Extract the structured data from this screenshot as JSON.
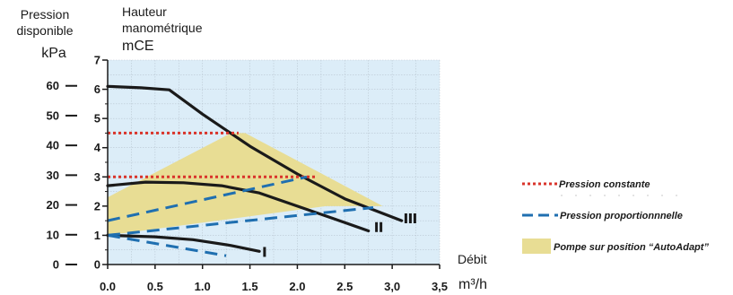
{
  "chart_data": {
    "type": "line",
    "y_left_label_line1": "Pression",
    "y_left_label_line2": "disponible",
    "y_left_unit": "kPa",
    "y_right_label_line1": "Hauteur",
    "y_right_label_line2": "manométrique",
    "y_right_unit": "mCE",
    "x_label": "Débit",
    "x_unit": "m³/h",
    "x_ticks": [
      "0.0",
      "0.5",
      "1.0",
      "1.5",
      "2.0",
      "2.5",
      "3,0",
      "3,5"
    ],
    "x_tick_values": [
      0,
      0.5,
      1.0,
      1.5,
      2.0,
      2.5,
      3.0,
      3.5
    ],
    "xlim": [
      0,
      3.5
    ],
    "ylim_mce": [
      0,
      7
    ],
    "y_mce_ticks": [
      "0",
      "1",
      "2",
      "3",
      "4",
      "5",
      "6",
      "7"
    ],
    "y_kpa_ticks": [
      "0",
      "10",
      "20",
      "30",
      "40",
      "50",
      "60"
    ],
    "y_kpa_values": [
      0,
      10,
      20,
      30,
      40,
      50,
      60
    ],
    "grid": true,
    "background_color": "#dcedf8",
    "curve_labels": {
      "I": "I",
      "II": "II",
      "III": "III"
    },
    "area": {
      "name": "Pompe sur position “AutoAdapt”",
      "color": "#e8dd94",
      "points": [
        [
          0,
          2.3
        ],
        [
          1.3,
          4.5
        ],
        [
          1.45,
          4.5
        ],
        [
          2.9,
          2.0
        ],
        [
          2.3,
          2.0
        ],
        [
          0,
          1.0
        ]
      ]
    },
    "series": [
      {
        "name": "I",
        "style": "solid",
        "color": "#1a1a1a",
        "points": [
          [
            0,
            1.0
          ],
          [
            0.5,
            0.95
          ],
          [
            0.9,
            0.85
          ],
          [
            1.3,
            0.65
          ],
          [
            1.6,
            0.45
          ]
        ]
      },
      {
        "name": "II",
        "style": "solid",
        "color": "#1a1a1a",
        "points": [
          [
            0,
            2.7
          ],
          [
            0.4,
            2.82
          ],
          [
            0.8,
            2.8
          ],
          [
            1.2,
            2.7
          ],
          [
            1.6,
            2.45
          ],
          [
            2.0,
            2.0
          ],
          [
            2.4,
            1.55
          ],
          [
            2.75,
            1.15
          ]
        ]
      },
      {
        "name": "III",
        "style": "solid",
        "color": "#1a1a1a",
        "points": [
          [
            0,
            6.1
          ],
          [
            0.35,
            6.05
          ],
          [
            0.65,
            5.98
          ],
          [
            1.0,
            5.15
          ],
          [
            1.5,
            4.05
          ],
          [
            2.0,
            3.1
          ],
          [
            2.5,
            2.25
          ],
          [
            3.1,
            1.5
          ]
        ]
      },
      {
        "name": "Pression constante",
        "style": "dotted",
        "color": "#d9342b",
        "segments": [
          [
            [
              0,
              4.5
            ],
            [
              1.38,
              4.5
            ]
          ],
          [
            [
              0,
              3.0
            ],
            [
              2.2,
              3.0
            ]
          ]
        ]
      },
      {
        "name": "Pression proportionnnelle",
        "style": "dashed",
        "color": "#1f6fb0",
        "segments": [
          [
            [
              0,
              1.5
            ],
            [
              2.1,
              3.0
            ]
          ],
          [
            [
              0,
              1.0
            ],
            [
              2.8,
              1.95
            ]
          ],
          [
            [
              0,
              1.0
            ],
            [
              1.25,
              0.3
            ]
          ]
        ]
      }
    ],
    "legend": {
      "placement": "right",
      "entries": [
        {
          "label": "Pression constante",
          "kind": "dotted",
          "color": "#d9342b"
        },
        {
          "label": "Pression proportionnnelle",
          "kind": "dashed",
          "color": "#1f6fb0"
        },
        {
          "label": "Pompe sur position “AutoAdapt”",
          "kind": "area",
          "color": "#e8dd94"
        }
      ]
    }
  }
}
